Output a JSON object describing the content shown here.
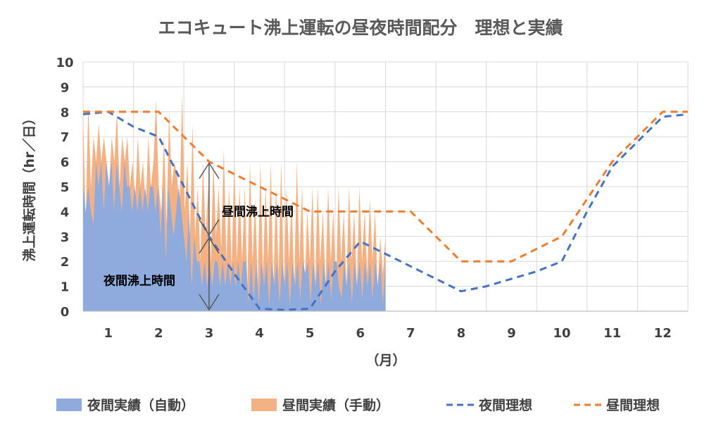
{
  "chart_data": {
    "type": "area",
    "title": "エコキュート沸上運転の昼夜時間配分　理想と実績",
    "ylabel": "沸上運転時間（hr／日）",
    "xlabel": "（月）",
    "ylim": [
      0,
      10
    ],
    "yticks": [
      "0",
      "1",
      "2",
      "3",
      "4",
      "5",
      "6",
      "7",
      "8",
      "9",
      "10"
    ],
    "xlim": [
      0.5,
      12.5
    ],
    "xticks": [
      "1",
      "2",
      "3",
      "4",
      "5",
      "6",
      "7",
      "8",
      "9",
      "10",
      "11",
      "12"
    ],
    "grid": true,
    "legend_position": "bottom",
    "annotations": [
      {
        "text": "昼間沸上時間",
        "x": 3.0,
        "y_from": 3.0,
        "y_to": 6.0
      },
      {
        "text": "夜間沸上時間",
        "x": 3.0,
        "y_from": 0.0,
        "y_to": 3.0
      }
    ],
    "series": [
      {
        "name": "夜間実績（自動）",
        "type": "area",
        "color": "#8FAADC",
        "x_range": [
          0.5,
          6.5
        ],
        "values": [
          5,
          4,
          5,
          4,
          3.5,
          6,
          5,
          6,
          4,
          6,
          5,
          6,
          4,
          6,
          5,
          4,
          6,
          5,
          5,
          4,
          5,
          4,
          5,
          4,
          5,
          4,
          5,
          5,
          4,
          5,
          3,
          5,
          2,
          5,
          4,
          3,
          4,
          5,
          4,
          3,
          2,
          4,
          1,
          3,
          2,
          2,
          1,
          2,
          1,
          2,
          1,
          2,
          2,
          1,
          2,
          1,
          2,
          1,
          2,
          1,
          2,
          1,
          2,
          2,
          0.3,
          2,
          0.5,
          2,
          0.3,
          2,
          1,
          2,
          0.2,
          2,
          1,
          2,
          0.3,
          2,
          1,
          2,
          0.2,
          2,
          1,
          2,
          0.5,
          2,
          1.5,
          2,
          0.3,
          2,
          1,
          2,
          0.2,
          2,
          1,
          2,
          0.5,
          2,
          2,
          1,
          0.5,
          2,
          1,
          2,
          0.3,
          2,
          1,
          2,
          0.5,
          2,
          1,
          2,
          0.5,
          2,
          1,
          2,
          0.3,
          2
        ]
      },
      {
        "name": "昼間実績（手動）",
        "type": "area",
        "color": "#F4B183",
        "x_range": [
          0.5,
          6.5
        ],
        "values": [
          8,
          3.5,
          8.3,
          5,
          7,
          6,
          7.5,
          6,
          7,
          6,
          5,
          7,
          6,
          8,
          5,
          7,
          6,
          7,
          5,
          6,
          4.5,
          7,
          5,
          6,
          4,
          7,
          5,
          6,
          8.5,
          5,
          4,
          7,
          3.5,
          8,
          5,
          6,
          5.5,
          4,
          8.7,
          4,
          6,
          3,
          7.5,
          3,
          5,
          2,
          6,
          3,
          5,
          2,
          6,
          3,
          5,
          2.5,
          6.5,
          2,
          5,
          1.8,
          6,
          2,
          5,
          2,
          5,
          1,
          6,
          2,
          4.5,
          1,
          6,
          1.5,
          5,
          2,
          6,
          1,
          5,
          1.5,
          6,
          1,
          5,
          2,
          4.5,
          1,
          6,
          2,
          5,
          1,
          4,
          2,
          5,
          1,
          5,
          2,
          4,
          1,
          5,
          2,
          4,
          1,
          5,
          2,
          4,
          1,
          5,
          2,
          4,
          1,
          5,
          2,
          4,
          1.5,
          4.5,
          2,
          4,
          1,
          3,
          1.5,
          3
        ]
      },
      {
        "name": "夜間理想",
        "type": "line",
        "style": "dashed",
        "color": "#4472C4",
        "x": [
          0.5,
          1.0,
          1.5,
          2.0,
          2.5,
          3.0,
          3.5,
          4.0,
          4.5,
          5.0,
          5.5,
          6.0,
          6.5,
          7.0,
          7.5,
          8.0,
          8.5,
          9.0,
          9.5,
          10.0,
          10.5,
          11.0,
          11.5,
          12.0,
          12.5
        ],
        "values": [
          7.9,
          8.0,
          7.4,
          7.0,
          5.0,
          3.0,
          1.5,
          0.1,
          0.05,
          0.1,
          1.6,
          2.8,
          2.3,
          1.8,
          1.3,
          0.8,
          1.0,
          1.3,
          1.6,
          2.0,
          4.0,
          5.8,
          6.8,
          7.8,
          7.9
        ]
      },
      {
        "name": "昼間理想",
        "type": "line",
        "style": "dashed",
        "color": "#ED7D31",
        "x": [
          0.5,
          1.0,
          1.5,
          2.0,
          2.5,
          3.0,
          3.5,
          4.0,
          4.5,
          5.0,
          5.5,
          6.0,
          6.5,
          7.0,
          7.5,
          8.0,
          8.5,
          9.0,
          9.5,
          10.0,
          10.5,
          11.0,
          11.5,
          12.0,
          12.5
        ],
        "values": [
          8.0,
          8.0,
          8.0,
          8.0,
          7.0,
          6.0,
          5.5,
          5.0,
          4.5,
          4.0,
          4.0,
          4.0,
          4.0,
          4.0,
          3.0,
          2.0,
          2.0,
          2.0,
          2.5,
          3.0,
          4.5,
          6.0,
          7.0,
          8.0,
          8.0
        ]
      }
    ]
  }
}
